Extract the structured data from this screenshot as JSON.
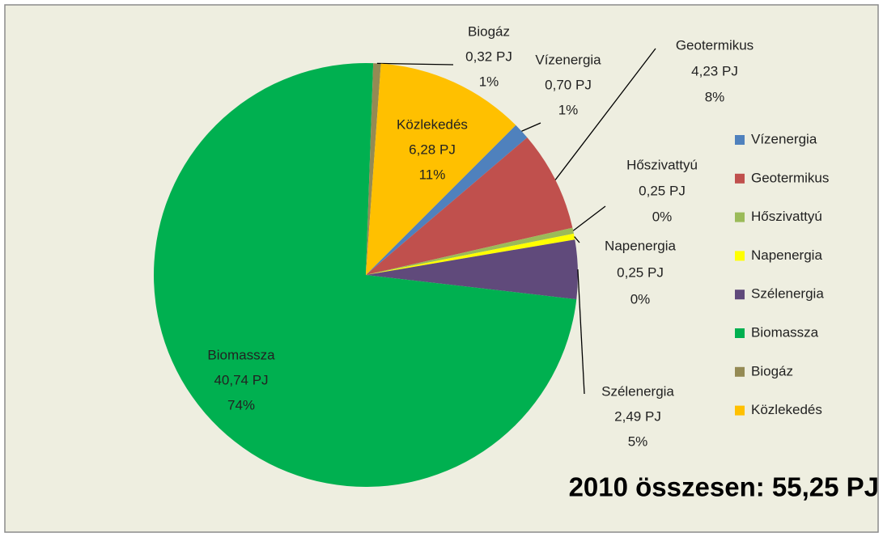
{
  "chart_data": {
    "type": "pie",
    "title": "2010 összesen: 55,25 PJ",
    "categories": [
      "Vízenergia",
      "Geotermikus",
      "Hőszivattyú",
      "Napenergia",
      "Szélenergia",
      "Biomassza",
      "Biogáz",
      "Közlekedés"
    ],
    "values": [
      0.7,
      4.23,
      0.25,
      0.25,
      2.49,
      40.74,
      0.32,
      6.28
    ],
    "value_labels": [
      "0,70 PJ",
      "4,23 PJ",
      "0,25 PJ",
      "0,25 PJ",
      "2,49 PJ",
      "40,74 PJ",
      "0,32 PJ",
      "6,28 PJ"
    ],
    "percent_labels": [
      "1%",
      "8%",
      "0%",
      "0%",
      "5%",
      "74%",
      "1%",
      "11%"
    ],
    "colors": [
      "#4f81bd",
      "#c0504d",
      "#9bbb59",
      "#ffff00",
      "#604a7b",
      "#00b050",
      "#948a54",
      "#ffc000"
    ],
    "legend": "right"
  }
}
